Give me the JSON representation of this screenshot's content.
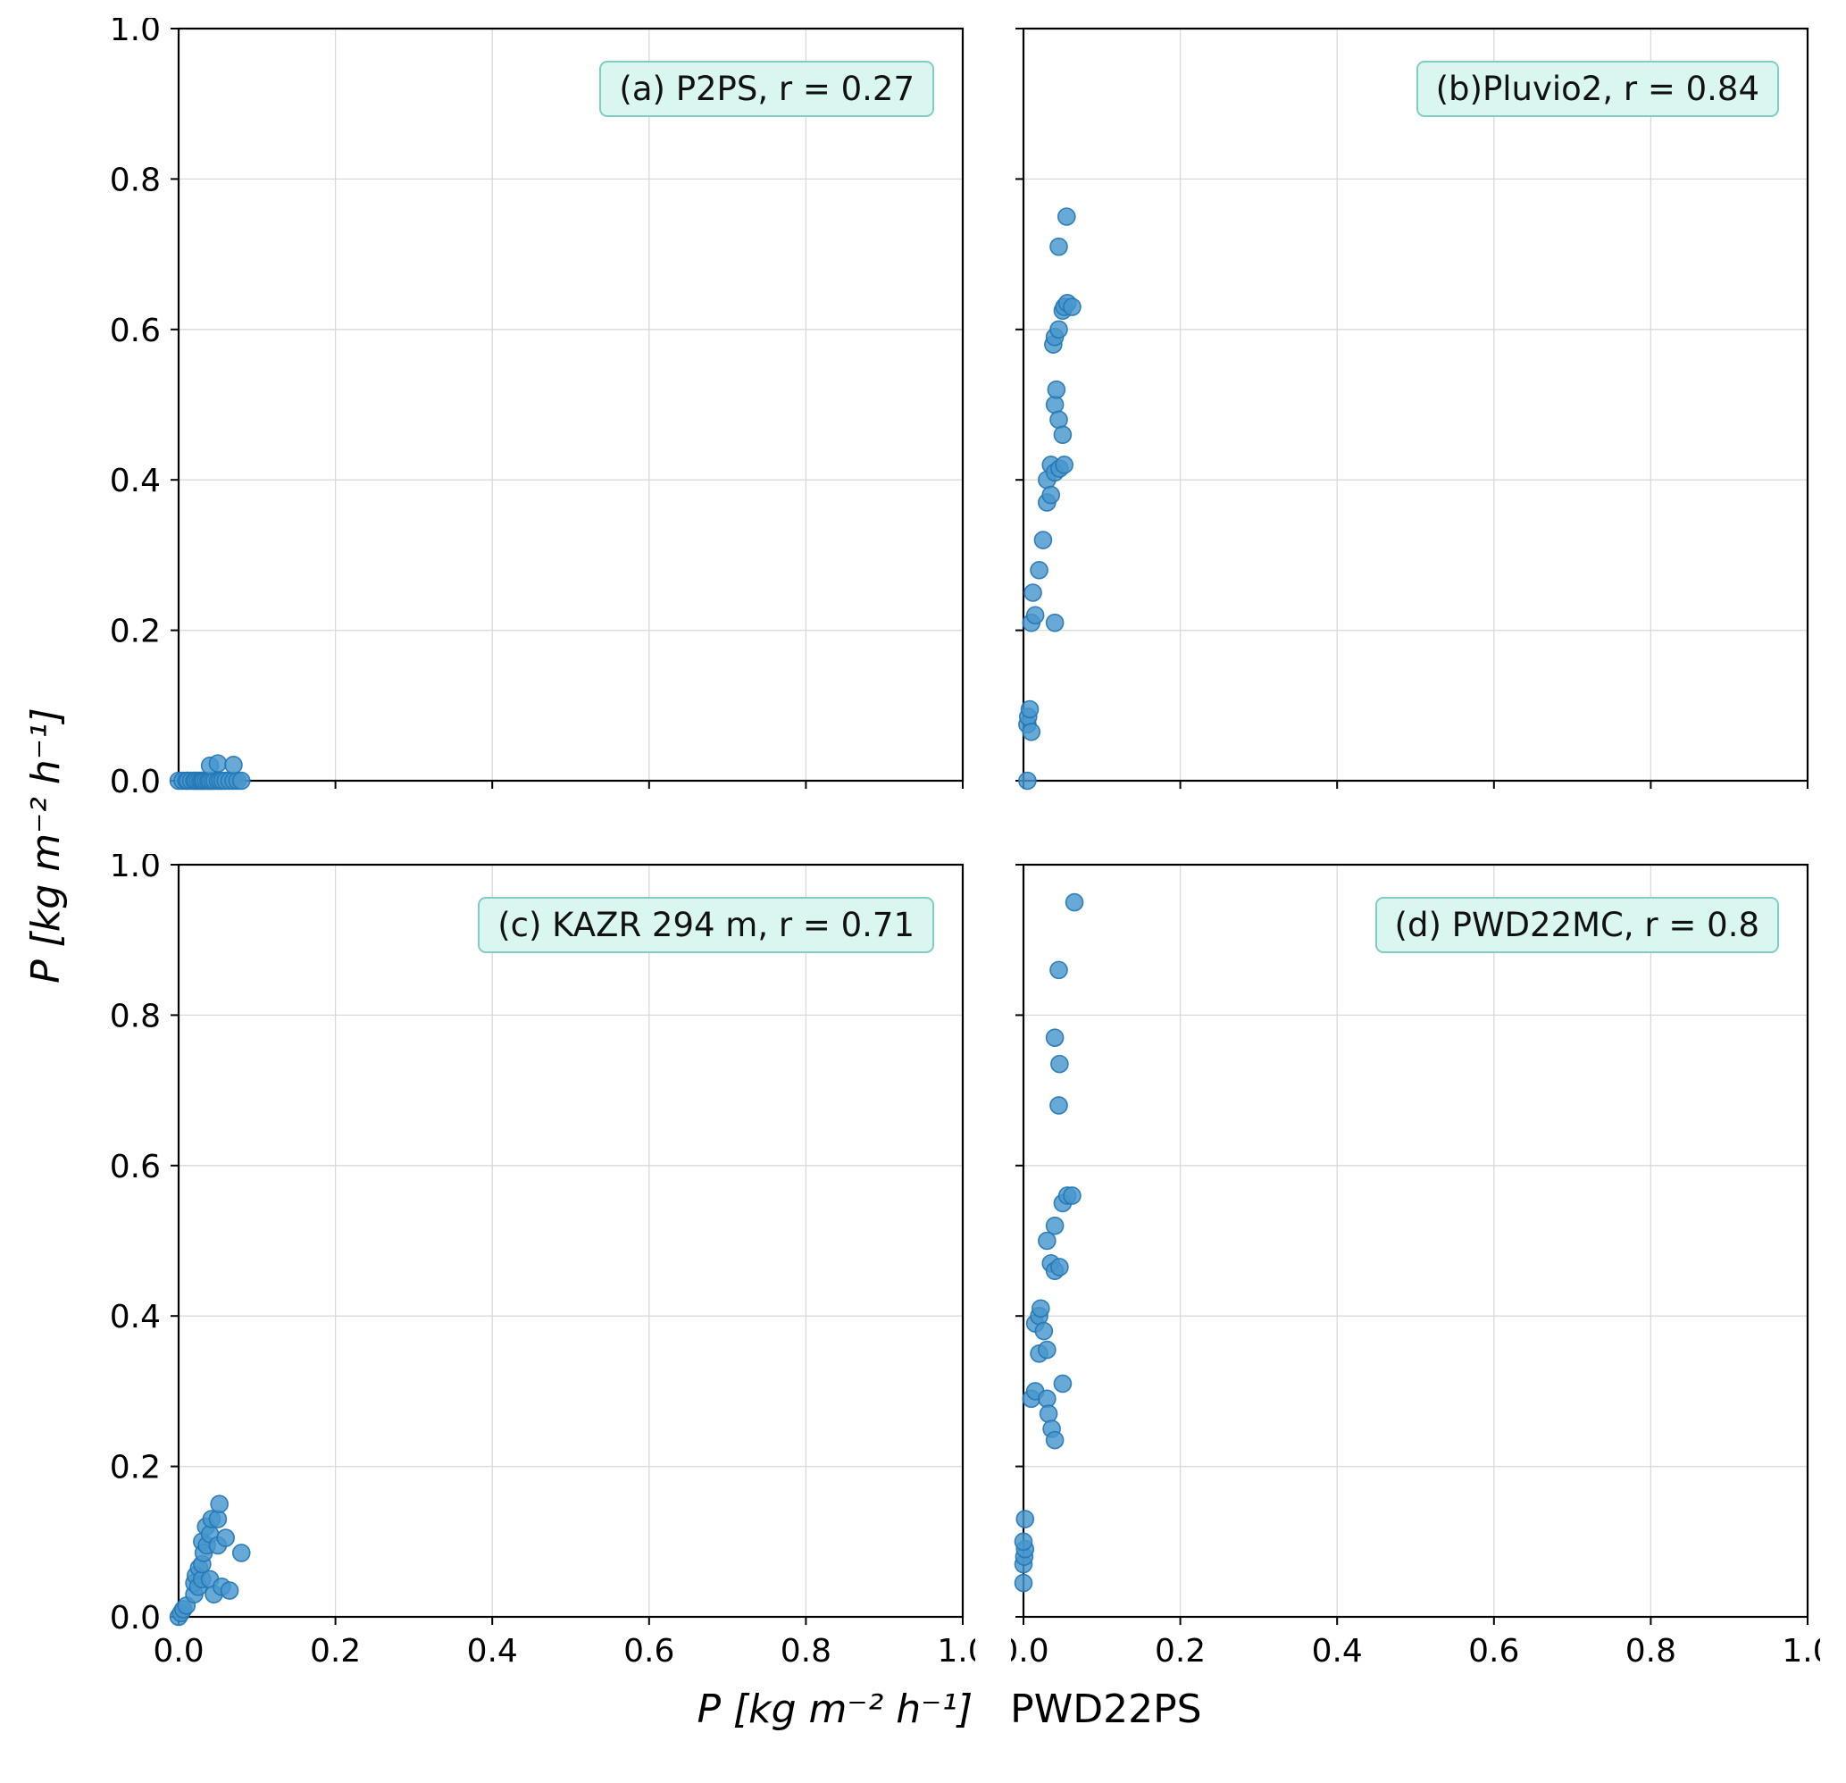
{
  "figure": {
    "ylabel": "P [kg m⁻² h⁻¹]",
    "xlabel_math": "P [kg m⁻² h⁻¹]",
    "xlabel_suffix": "PWD22PS"
  },
  "style": {
    "dot_fill": "#4796cd",
    "dot_edge": "#2276b4",
    "grid_color": "#d9d9d9",
    "axis_color": "#000000",
    "annotation_bg": "#d9f6f0",
    "annotation_border": "#82cdc3"
  },
  "axes": {
    "xlim": [
      0.0,
      1.0
    ],
    "ylim": [
      0.0,
      1.0
    ],
    "ticks": [
      0.0,
      0.2,
      0.4,
      0.6,
      0.8,
      1.0
    ],
    "tick_labels": [
      "0.0",
      "0.2",
      "0.4",
      "0.6",
      "0.8",
      "1.0"
    ],
    "grid": true
  },
  "chart_data": [
    {
      "type": "scatter",
      "annotation": "(a) P2PS, r = 0.27",
      "instrument": "P2PS",
      "r": 0.27,
      "points": [
        [
          0.0,
          0.0
        ],
        [
          0.005,
          0.0
        ],
        [
          0.01,
          0.0
        ],
        [
          0.012,
          0.0
        ],
        [
          0.016,
          0.0
        ],
        [
          0.02,
          0.0
        ],
        [
          0.022,
          0.0
        ],
        [
          0.025,
          0.0
        ],
        [
          0.028,
          0.0
        ],
        [
          0.03,
          0.0
        ],
        [
          0.032,
          0.0
        ],
        [
          0.035,
          0.0
        ],
        [
          0.038,
          0.0
        ],
        [
          0.04,
          0.0
        ],
        [
          0.043,
          0.0
        ],
        [
          0.046,
          0.0
        ],
        [
          0.05,
          0.0
        ],
        [
          0.053,
          0.0
        ],
        [
          0.056,
          0.0
        ],
        [
          0.06,
          0.0
        ],
        [
          0.065,
          0.0
        ],
        [
          0.07,
          0.0
        ],
        [
          0.075,
          0.0
        ],
        [
          0.08,
          0.0
        ],
        [
          0.04,
          0.02
        ],
        [
          0.05,
          0.023
        ],
        [
          0.07,
          0.021
        ]
      ]
    },
    {
      "type": "scatter",
      "annotation": "(b)Pluvio2, r = 0.84",
      "instrument": "Pluvio2",
      "r": 0.84,
      "points": [
        [
          0.005,
          0.0
        ],
        [
          0.005,
          0.075
        ],
        [
          0.006,
          0.085
        ],
        [
          0.008,
          0.095
        ],
        [
          0.01,
          0.065
        ],
        [
          0.01,
          0.21
        ],
        [
          0.012,
          0.25
        ],
        [
          0.015,
          0.22
        ],
        [
          0.04,
          0.21
        ],
        [
          0.02,
          0.28
        ],
        [
          0.025,
          0.32
        ],
        [
          0.03,
          0.37
        ],
        [
          0.03,
          0.4
        ],
        [
          0.035,
          0.38
        ],
        [
          0.035,
          0.42
        ],
        [
          0.04,
          0.41
        ],
        [
          0.046,
          0.415
        ],
        [
          0.052,
          0.42
        ],
        [
          0.04,
          0.5
        ],
        [
          0.042,
          0.52
        ],
        [
          0.045,
          0.48
        ],
        [
          0.05,
          0.46
        ],
        [
          0.038,
          0.58
        ],
        [
          0.04,
          0.59
        ],
        [
          0.045,
          0.6
        ],
        [
          0.05,
          0.625
        ],
        [
          0.052,
          0.63
        ],
        [
          0.056,
          0.635
        ],
        [
          0.062,
          0.63
        ],
        [
          0.045,
          0.71
        ],
        [
          0.055,
          0.75
        ]
      ]
    },
    {
      "type": "scatter",
      "annotation": "(c) KAZR 294 m, r = 0.71",
      "instrument": "KAZR 294 m",
      "r": 0.71,
      "points": [
        [
          0.0,
          0.0
        ],
        [
          0.003,
          0.005
        ],
        [
          0.006,
          0.01
        ],
        [
          0.01,
          0.015
        ],
        [
          0.02,
          0.03
        ],
        [
          0.02,
          0.045
        ],
        [
          0.022,
          0.055
        ],
        [
          0.025,
          0.04
        ],
        [
          0.026,
          0.065
        ],
        [
          0.03,
          0.05
        ],
        [
          0.03,
          0.07
        ],
        [
          0.03,
          0.1
        ],
        [
          0.032,
          0.085
        ],
        [
          0.035,
          0.12
        ],
        [
          0.036,
          0.095
        ],
        [
          0.04,
          0.05
        ],
        [
          0.04,
          0.11
        ],
        [
          0.042,
          0.13
        ],
        [
          0.045,
          0.03
        ],
        [
          0.05,
          0.095
        ],
        [
          0.05,
          0.13
        ],
        [
          0.052,
          0.15
        ],
        [
          0.055,
          0.04
        ],
        [
          0.06,
          0.105
        ],
        [
          0.065,
          0.035
        ],
        [
          0.08,
          0.085
        ]
      ]
    },
    {
      "type": "scatter",
      "annotation": "(d) PWD22MC, r = 0.8",
      "instrument": "PWD22MC",
      "r": 0.8,
      "points": [
        [
          0.0,
          0.045
        ],
        [
          0.0,
          0.07
        ],
        [
          0.001,
          0.08
        ],
        [
          0.002,
          0.09
        ],
        [
          0.0,
          0.1
        ],
        [
          0.002,
          0.13
        ],
        [
          0.01,
          0.29
        ],
        [
          0.015,
          0.3
        ],
        [
          0.02,
          0.35
        ],
        [
          0.03,
          0.29
        ],
        [
          0.032,
          0.27
        ],
        [
          0.036,
          0.25
        ],
        [
          0.04,
          0.235
        ],
        [
          0.05,
          0.31
        ],
        [
          0.015,
          0.39
        ],
        [
          0.02,
          0.4
        ],
        [
          0.022,
          0.41
        ],
        [
          0.026,
          0.38
        ],
        [
          0.03,
          0.355
        ],
        [
          0.035,
          0.47
        ],
        [
          0.04,
          0.46
        ],
        [
          0.046,
          0.465
        ],
        [
          0.03,
          0.5
        ],
        [
          0.04,
          0.52
        ],
        [
          0.05,
          0.55
        ],
        [
          0.056,
          0.56
        ],
        [
          0.062,
          0.56
        ],
        [
          0.045,
          0.68
        ],
        [
          0.046,
          0.735
        ],
        [
          0.04,
          0.77
        ],
        [
          0.045,
          0.86
        ],
        [
          0.065,
          0.95
        ]
      ]
    }
  ]
}
